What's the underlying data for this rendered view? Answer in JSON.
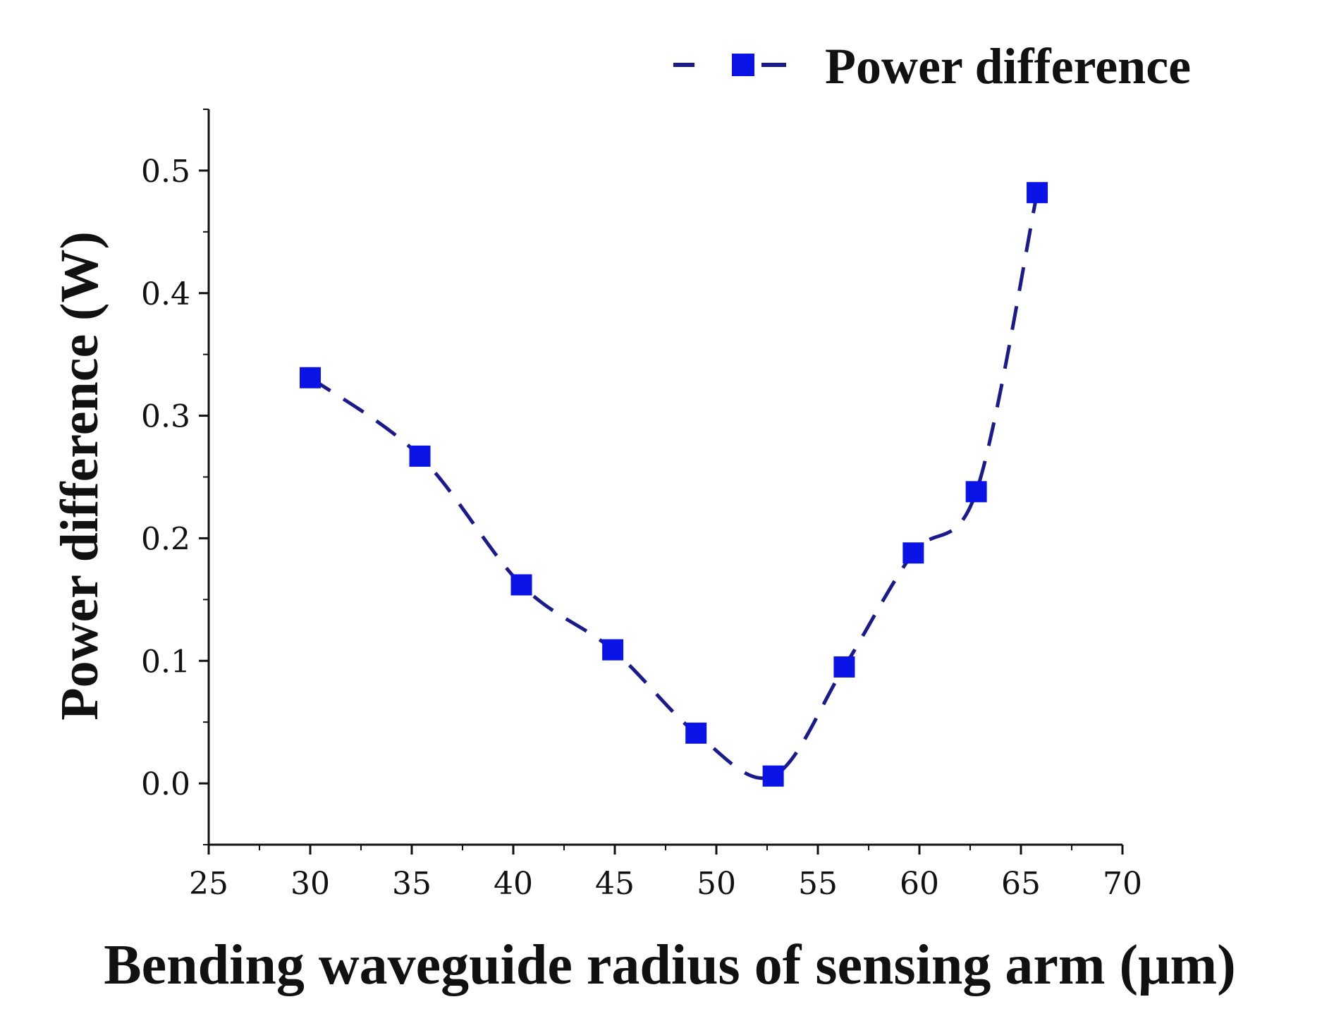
{
  "chart_data": {
    "type": "line",
    "title": "",
    "xlabel": "Bending waveguide radius of sensing arm (μm)",
    "ylabel": "Power difference (W)",
    "xlim": [
      25,
      70
    ],
    "ylim": [
      -0.05,
      0.55
    ],
    "xticks": [
      25,
      30,
      35,
      40,
      45,
      50,
      55,
      60,
      65,
      70
    ],
    "xtick_labels": [
      "25",
      "30",
      "35",
      "40",
      "45",
      "50",
      "55",
      "60",
      "65",
      "70"
    ],
    "yticks": [
      0.0,
      0.1,
      0.2,
      0.3,
      0.4,
      0.5
    ],
    "ytick_labels": [
      "0.0",
      "0.1",
      "0.2",
      "0.3",
      "0.4",
      "0.5"
    ],
    "grid": false,
    "legend_position": "top-right",
    "series": [
      {
        "name": "Power difference",
        "color": "#0a14e6",
        "line_color": "#1a1a8c",
        "line_style": "dashed",
        "marker": "square",
        "x": [
          30,
          35.4,
          40.4,
          44.9,
          49.0,
          52.8,
          56.3,
          59.7,
          62.8,
          65.8
        ],
        "y": [
          0.331,
          0.267,
          0.162,
          0.109,
          0.041,
          0.006,
          0.095,
          0.188,
          0.238,
          0.482
        ]
      }
    ]
  }
}
